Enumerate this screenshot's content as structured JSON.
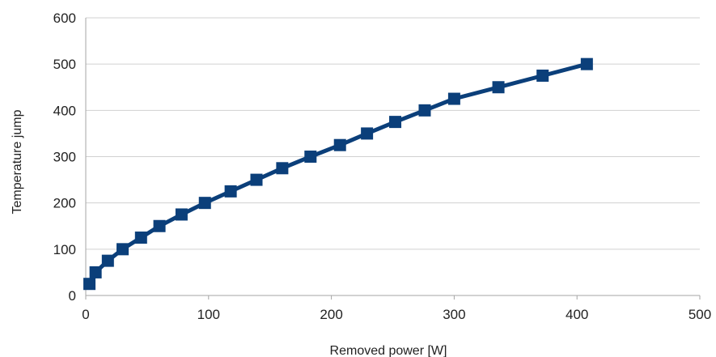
{
  "chart_data": {
    "type": "line",
    "title": "",
    "xlabel": "Removed power [W]",
    "ylabel": "Temperature jump",
    "xlim": [
      0,
      500
    ],
    "ylim": [
      0,
      600
    ],
    "xticks": [
      0,
      100,
      200,
      300,
      400,
      500
    ],
    "yticks": [
      0,
      100,
      200,
      300,
      400,
      500,
      600
    ],
    "grid": "horizontal",
    "legend": "none",
    "series": [
      {
        "color": "#0b3f7a",
        "marker": "square",
        "points": [
          {
            "x": 3,
            "y": 25
          },
          {
            "x": 8,
            "y": 50
          },
          {
            "x": 18,
            "y": 75
          },
          {
            "x": 30,
            "y": 100
          },
          {
            "x": 45,
            "y": 125
          },
          {
            "x": 60,
            "y": 150
          },
          {
            "x": 78,
            "y": 175
          },
          {
            "x": 97,
            "y": 200
          },
          {
            "x": 118,
            "y": 225
          },
          {
            "x": 139,
            "y": 250
          },
          {
            "x": 160,
            "y": 275
          },
          {
            "x": 183,
            "y": 300
          },
          {
            "x": 207,
            "y": 325
          },
          {
            "x": 229,
            "y": 350
          },
          {
            "x": 252,
            "y": 375
          },
          {
            "x": 276,
            "y": 400
          },
          {
            "x": 300,
            "y": 425
          },
          {
            "x": 336,
            "y": 450
          },
          {
            "x": 372,
            "y": 475
          },
          {
            "x": 408,
            "y": 500
          }
        ]
      }
    ]
  }
}
